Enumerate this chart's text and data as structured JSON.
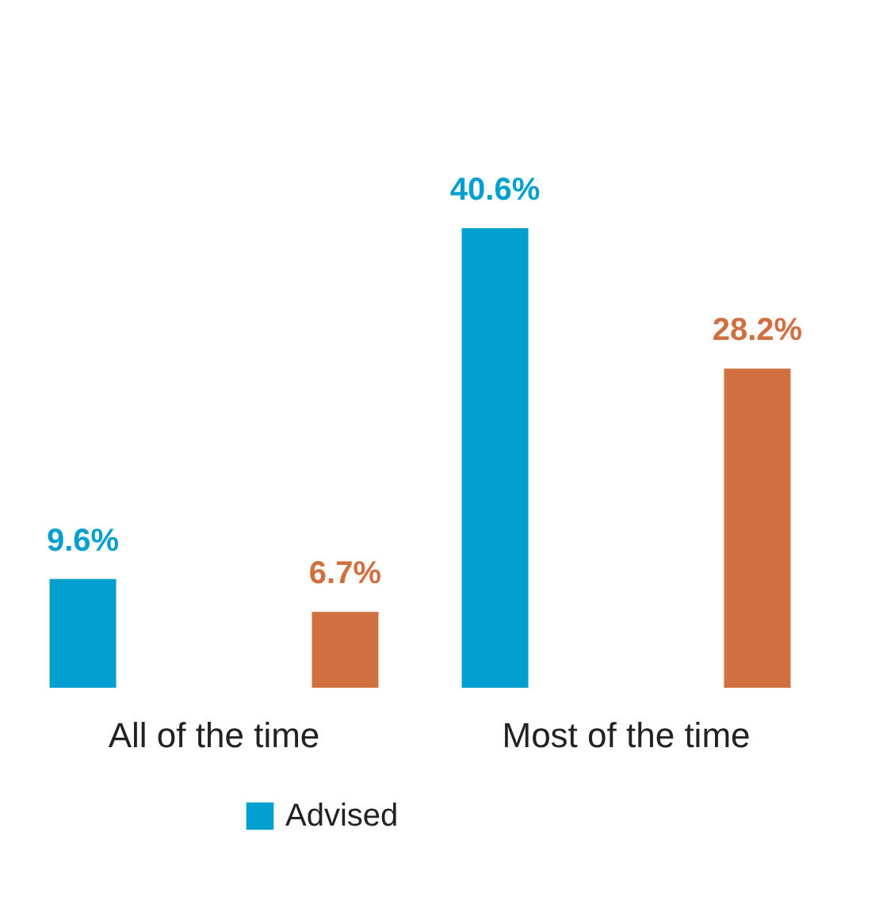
{
  "chart_data": {
    "type": "bar",
    "categories": [
      "All of the time",
      "Most of the time"
    ],
    "series": [
      {
        "name": "Advised",
        "color": "#009fd0",
        "values": [
          9.6,
          40.6
        ],
        "value_labels": [
          "9.6%",
          "40.6%"
        ]
      },
      {
        "color": "#d07040",
        "values": [
          6.7,
          28.2
        ],
        "value_labels": [
          "6.7%",
          "28.2%"
        ]
      }
    ],
    "legend": "bottom",
    "grid": false
  }
}
